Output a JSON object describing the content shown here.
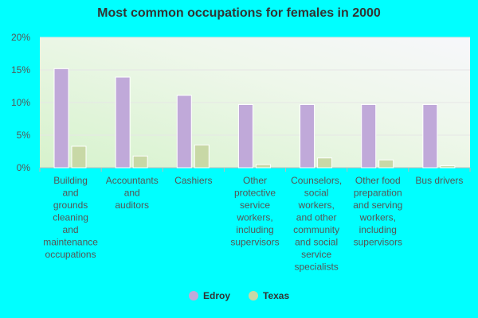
{
  "chart_data": {
    "type": "bar",
    "title": "Most common occupations for females in 2000",
    "categories": [
      [
        "Building",
        "and",
        "grounds",
        "cleaning",
        "and",
        "maintenance",
        "occupations"
      ],
      [
        "Accountants",
        "and",
        "auditors"
      ],
      [
        "Cashiers"
      ],
      [
        "Other",
        "protective",
        "service",
        "workers,",
        "including",
        "supervisors"
      ],
      [
        "Counselors,",
        "social",
        "workers,",
        "and other",
        "community",
        "and social",
        "service",
        "specialists"
      ],
      [
        "Other food",
        "preparation",
        "and serving",
        "workers,",
        "including",
        "supervisors"
      ],
      [
        "Bus drivers"
      ]
    ],
    "series": [
      {
        "name": "Edroy",
        "color": "#c0a9d9",
        "values": [
          15.2,
          13.9,
          11.1,
          9.7,
          9.7,
          9.7,
          9.7
        ]
      },
      {
        "name": "Texas",
        "color": "#c8d8a6",
        "values": [
          3.3,
          1.8,
          3.5,
          0.5,
          1.5,
          1.2,
          0.3
        ]
      }
    ],
    "yticks": [
      "0%",
      "5%",
      "10%",
      "15%",
      "20%"
    ],
    "ylim": [
      0,
      20
    ],
    "grid": true,
    "legend": "bottom"
  }
}
